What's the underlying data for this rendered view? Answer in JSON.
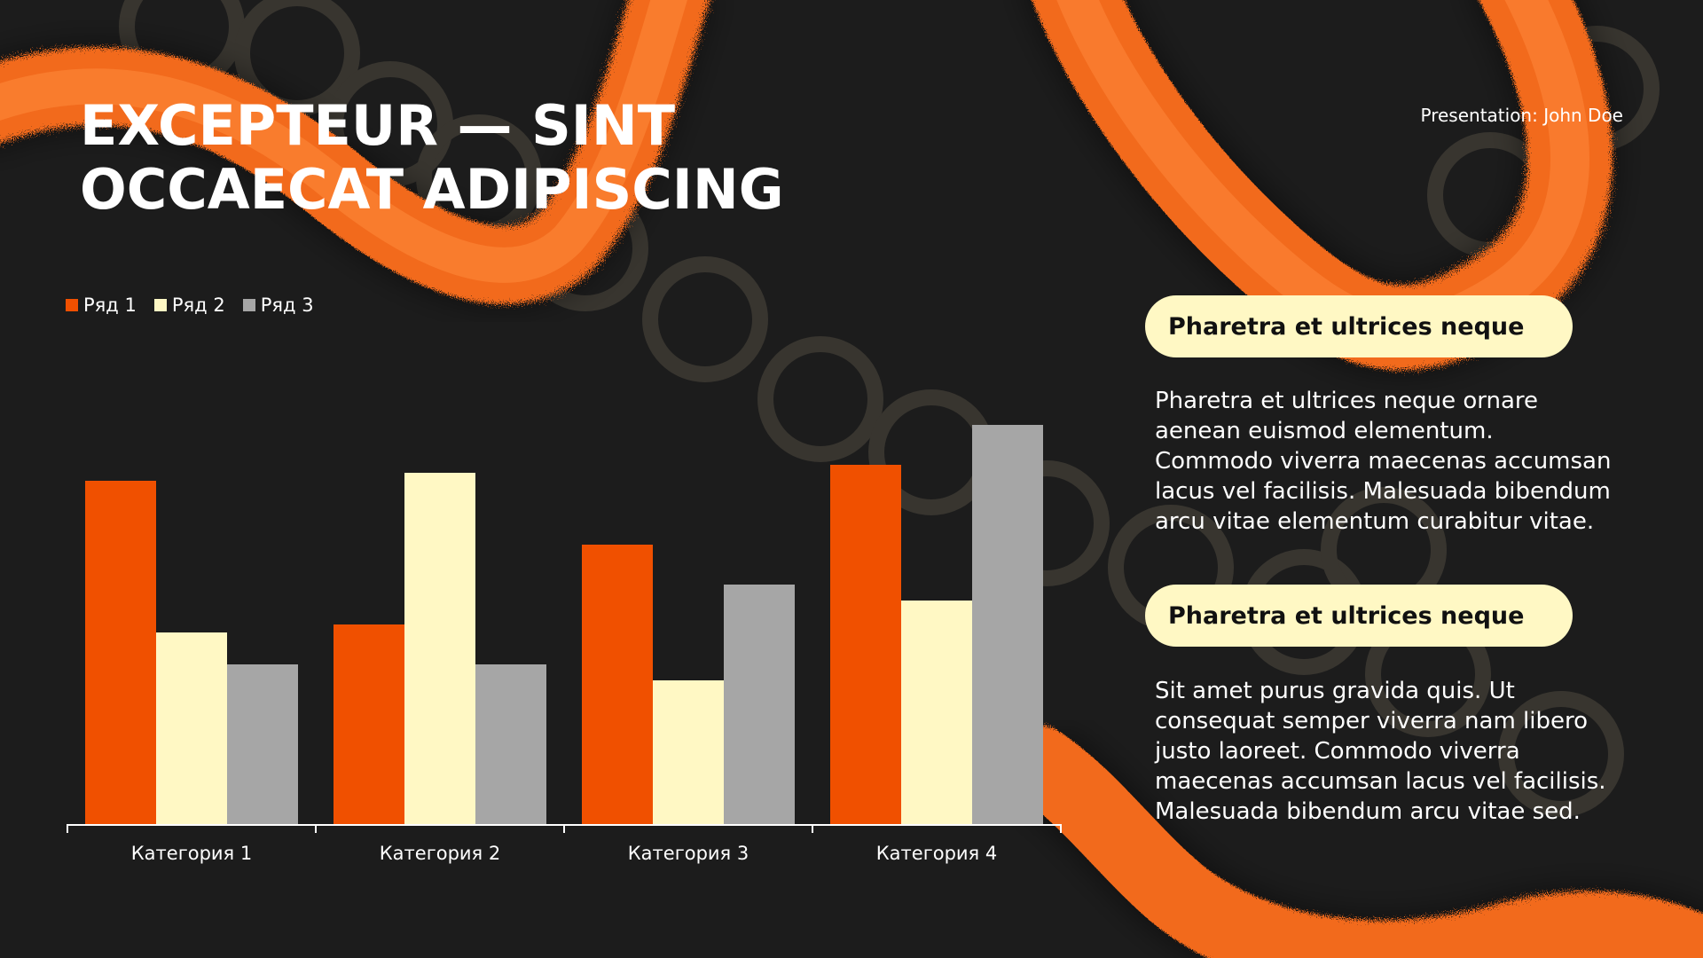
{
  "slide": {
    "title": "EXCEPTEUR — SINT OCCAECAT ADIPISCING",
    "presenter": "Presentation: John Doe"
  },
  "colors": {
    "background": "#1c1c1c",
    "accent_orange": "#f05000",
    "cream": "#fff8c4",
    "gray": "#a6a6a6"
  },
  "cards": [
    {
      "heading": "Pharetra et ultrices neque",
      "body": "Pharetra et ultrices neque ornare aenean euismod elementum. Commodo viverra maecenas accumsan lacus vel facilisis. Malesuada bibendum arcu vitae elementum curabitur vitae."
    },
    {
      "heading": "Pharetra et ultrices neque",
      "body": "Sit amet purus gravida quis. Ut consequat semper viverra nam libero justo laoreet. Commodo viverra maecenas accumsan lacus vel facilisis. Malesuada bibendum arcu vitae sed."
    }
  ],
  "chart_data": {
    "type": "bar",
    "categories": [
      "Категория 1",
      "Категория 2",
      "Категория 3",
      "Категория 4"
    ],
    "series": [
      {
        "name": "Ряд 1",
        "values": [
          4.3,
          2.5,
          3.5,
          4.5
        ],
        "color": "#f05000"
      },
      {
        "name": "Ряд 2",
        "values": [
          2.4,
          4.4,
          1.8,
          2.8
        ],
        "color": "#fff8c4"
      },
      {
        "name": "Ряд 3",
        "values": [
          2.0,
          2.0,
          3.0,
          5.0
        ],
        "color": "#a6a6a6"
      }
    ],
    "ylim": [
      0,
      5
    ],
    "legend": "top-left",
    "grid": false
  }
}
